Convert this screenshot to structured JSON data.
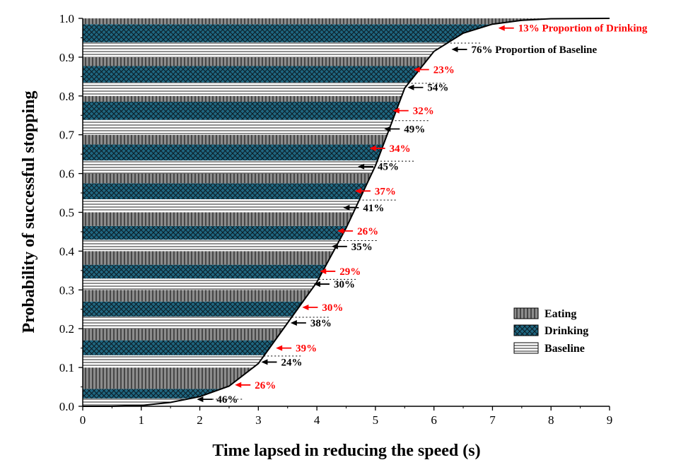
{
  "chart_data": {
    "type": "bar",
    "orientation": "horizontal-stacked-bands",
    "xlabel": "Time lapsed in reducing the speed (s)",
    "ylabel": "Probability of successful stopping",
    "xlim": [
      0,
      9
    ],
    "ylim": [
      0,
      1
    ],
    "x_ticks": [
      "0",
      "1",
      "2",
      "3",
      "4",
      "5",
      "6",
      "7",
      "8",
      "9"
    ],
    "y_ticks": [
      "0.0",
      "0.1",
      "0.2",
      "0.3",
      "0.4",
      "0.5",
      "0.6",
      "0.7",
      "0.8",
      "0.9",
      "1.0"
    ],
    "grid": false,
    "legend_position": "bottom-right",
    "series": [
      {
        "name": "Eating",
        "color": "#8c8c8c",
        "pattern": "vertical-lines"
      },
      {
        "name": "Drinking",
        "color": "#1f6680",
        "pattern": "crosshatch"
      },
      {
        "name": "Baseline",
        "color": "#ffffff",
        "pattern": "horizontal-lines"
      }
    ],
    "bands": [
      {
        "y0": 0.0,
        "drinking_top": 0.045,
        "x_end": 2.15,
        "drinking_label": "26%",
        "baseline_label": "46%",
        "drink_y": 0.055,
        "base_y": 0.018,
        "drink_x": 2.6,
        "base_x": 1.95
      },
      {
        "y0": 0.1,
        "drinking_top": 0.17,
        "x_end": 3.0,
        "drinking_label": "39%",
        "baseline_label": "24%",
        "drink_y": 0.15,
        "base_y": 0.114,
        "drink_x": 3.3,
        "base_x": 3.05
      },
      {
        "y0": 0.2,
        "drinking_top": 0.27,
        "x_end": 3.55,
        "drinking_label": "30%",
        "baseline_label": "38%",
        "drink_y": 0.255,
        "base_y": 0.215,
        "drink_x": 3.75,
        "base_x": 3.55
      },
      {
        "y0": 0.3,
        "drinking_top": 0.365,
        "x_end": 3.95,
        "drinking_label": "29%",
        "baseline_label": "30%",
        "drink_y": 0.348,
        "base_y": 0.315,
        "drink_x": 4.05,
        "base_x": 3.95
      },
      {
        "y0": 0.4,
        "drinking_top": 0.465,
        "x_end": 4.25,
        "drinking_label": "26%",
        "baseline_label": "35%",
        "drink_y": 0.452,
        "base_y": 0.412,
        "drink_x": 4.35,
        "base_x": 4.25
      },
      {
        "y0": 0.5,
        "drinking_top": 0.575,
        "x_end": 4.55,
        "drinking_label": "37%",
        "baseline_label": "41%",
        "drink_y": 0.555,
        "base_y": 0.512,
        "drink_x": 4.65,
        "base_x": 4.45
      },
      {
        "y0": 0.6,
        "drinking_top": 0.675,
        "x_end": 4.85,
        "drinking_label": "34%",
        "baseline_label": "45%",
        "drink_y": 0.665,
        "base_y": 0.618,
        "drink_x": 4.9,
        "base_x": 4.7
      },
      {
        "y0": 0.7,
        "drinking_top": 0.785,
        "x_end": 5.2,
        "drinking_label": "32%",
        "baseline_label": "49%",
        "drink_y": 0.762,
        "base_y": 0.715,
        "drink_x": 5.3,
        "base_x": 5.15
      },
      {
        "y0": 0.8,
        "drinking_top": 0.877,
        "x_end": 5.65,
        "drinking_label": "23%",
        "baseline_label": "54%",
        "drink_y": 0.868,
        "base_y": 0.822,
        "drink_x": 5.65,
        "base_x": 5.55
      },
      {
        "y0": 0.9,
        "drinking_top": 0.985,
        "x_end": 6.4,
        "drinking_label": "13%",
        "baseline_label": "76%",
        "drink_y": 0.975,
        "base_y": 0.92,
        "drink_x": 7.1,
        "base_x": 6.3,
        "drinking_suffix": "Proportion of Drinking",
        "baseline_suffix": "Proportion of Baseline"
      }
    ],
    "curve": [
      [
        0,
        0
      ],
      [
        0.5,
        0
      ],
      [
        1,
        0.002
      ],
      [
        1.5,
        0.01
      ],
      [
        2,
        0.025
      ],
      [
        2.5,
        0.052
      ],
      [
        3,
        0.11
      ],
      [
        3.5,
        0.215
      ],
      [
        4,
        0.32
      ],
      [
        4.5,
        0.46
      ],
      [
        5,
        0.62
      ],
      [
        5.5,
        0.82
      ],
      [
        6,
        0.915
      ],
      [
        6.5,
        0.962
      ],
      [
        7,
        0.985
      ],
      [
        7.5,
        0.995
      ],
      [
        8,
        0.999
      ],
      [
        9,
        1
      ]
    ],
    "annotation_colors": {
      "drinking": "#ff0000",
      "baseline": "#000000"
    }
  }
}
